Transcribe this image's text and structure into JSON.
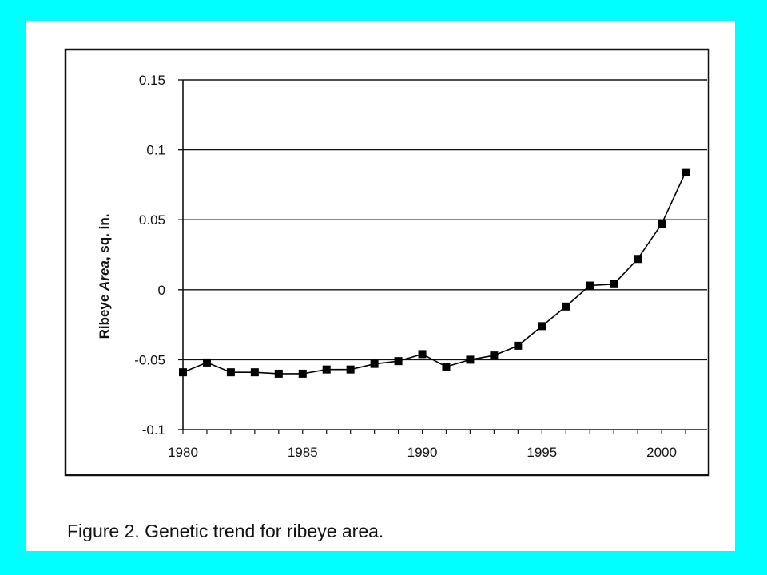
{
  "caption": "Figure 2. Genetic trend for ribeye area.",
  "colors": {
    "background": "#00ffff",
    "paper": "#ffffff",
    "line": "#000000"
  },
  "chart_data": {
    "type": "line",
    "title": "",
    "xlabel": "",
    "ylabel_parts": [
      "Ribeye ",
      "Area",
      ", sq. in."
    ],
    "xlim": [
      1980,
      2001.5
    ],
    "ylim": [
      -0.1,
      0.15
    ],
    "x_ticks": [
      1980,
      1985,
      1990,
      1995,
      2000
    ],
    "y_ticks": [
      -0.1,
      -0.05,
      0,
      0.05,
      0.1,
      0.15
    ],
    "y_tick_labels": [
      "-0.1",
      "-0.05",
      "0",
      "0.05",
      "0.1",
      "0.15"
    ],
    "grid": "horizontal",
    "marker": "square",
    "series": [
      {
        "x": [
          1980,
          1981,
          1982,
          1983,
          1984,
          1985,
          1986,
          1987,
          1988,
          1989,
          1990,
          1991,
          1992,
          1993,
          1994,
          1995,
          1996,
          1997,
          1998,
          1999,
          2000,
          2001
        ],
        "values": [
          -0.059,
          -0.052,
          -0.059,
          -0.059,
          -0.06,
          -0.06,
          -0.057,
          -0.057,
          -0.053,
          -0.051,
          -0.046,
          -0.055,
          -0.05,
          -0.047,
          -0.04,
          -0.026,
          -0.012,
          0.003,
          0.004,
          0.022,
          0.047,
          0.084
        ]
      }
    ]
  }
}
